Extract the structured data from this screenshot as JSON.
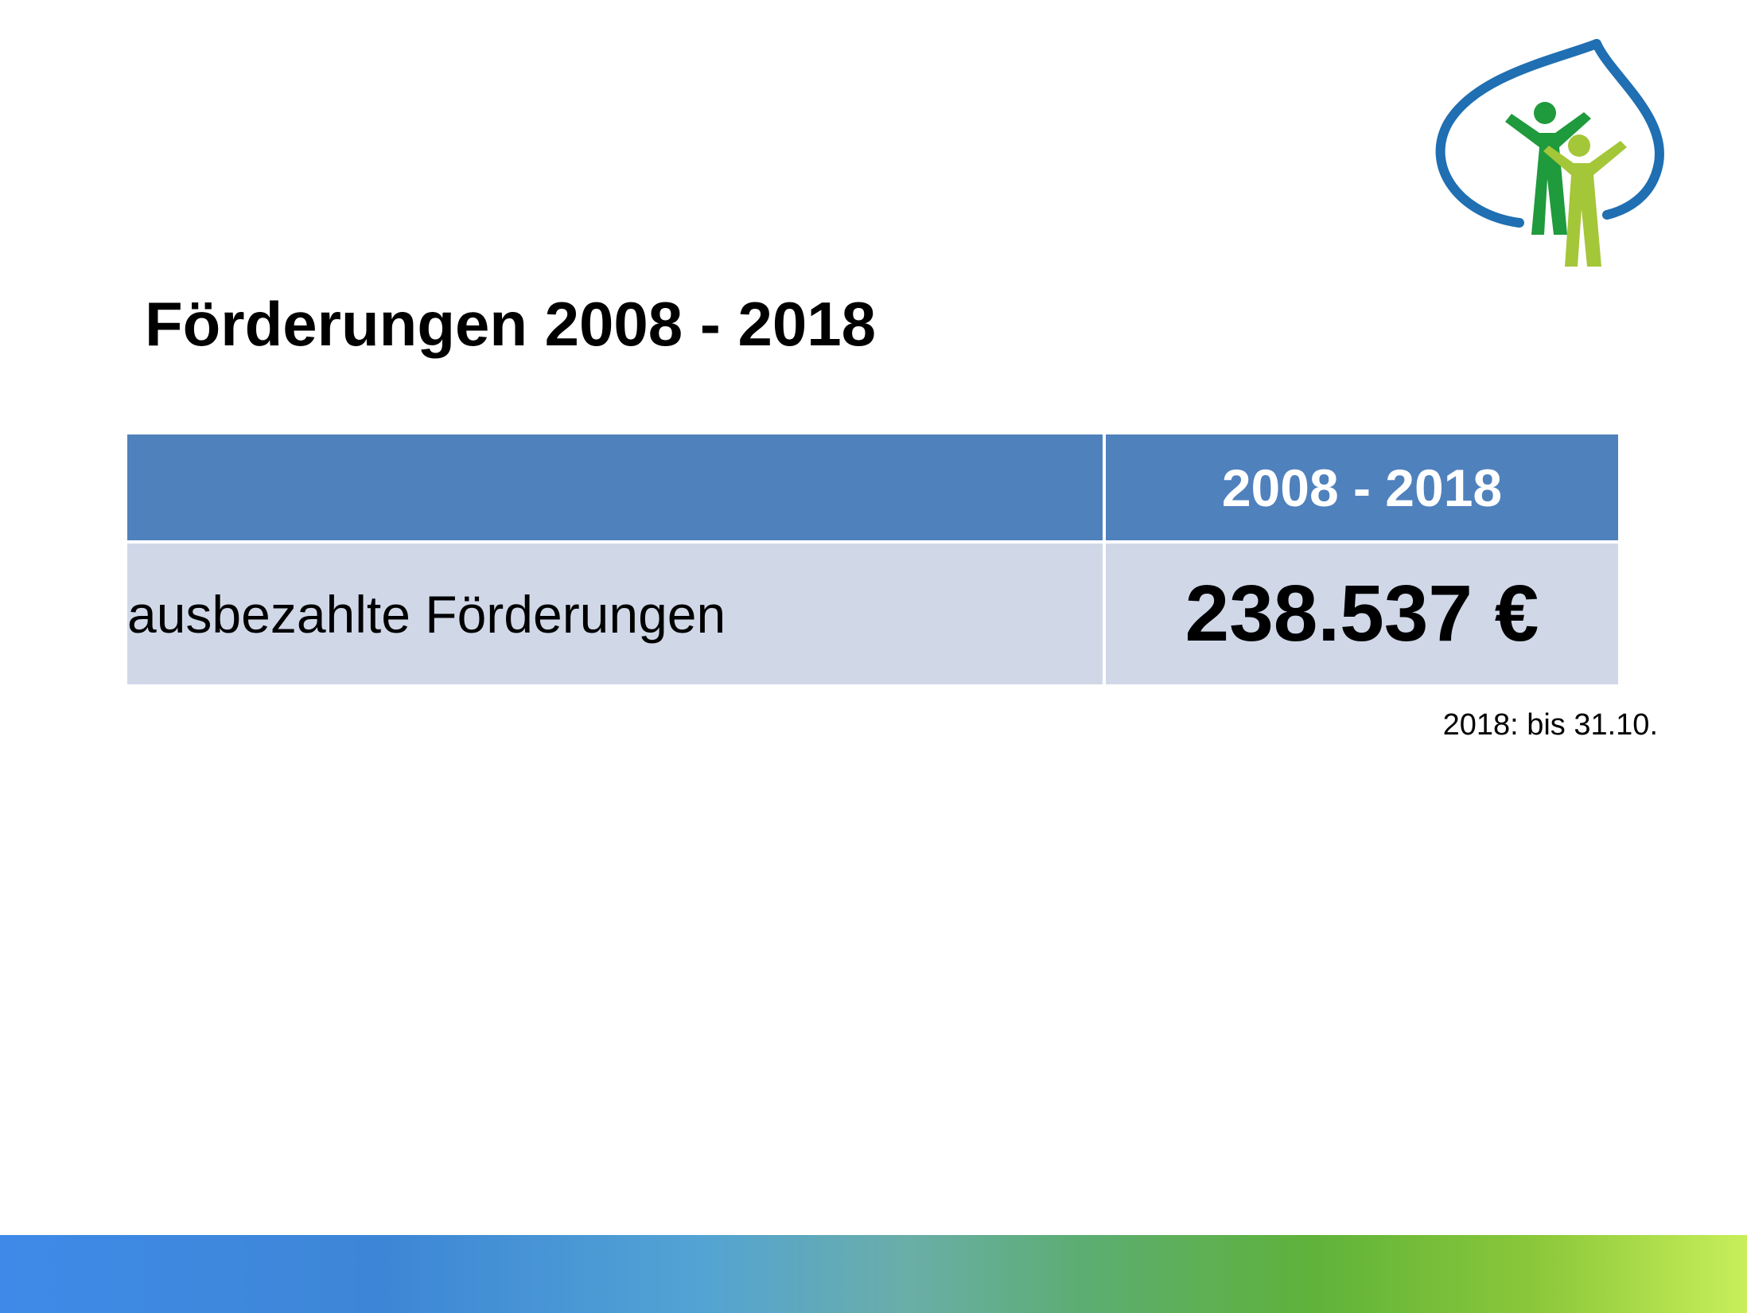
{
  "logo": {
    "icon": "leaf-with-two-figures-logo",
    "colors": {
      "leaf_outline": "#1f6fb2",
      "figure_dark": "#1f9a3c",
      "figure_light": "#a4c639"
    }
  },
  "title": "Förderungen 2008 - 2018",
  "table": {
    "header": {
      "label": "",
      "period": "2008 - 2018"
    },
    "rows": [
      {
        "label": "ausbezahlte Förderungen",
        "value": "238.537 €"
      }
    ]
  },
  "footnote": "2018: bis 31.10.",
  "colors": {
    "table_header": "#4f81bd",
    "table_row": "#d0d8e8",
    "gradient_start": "#3f8ae8",
    "gradient_end": "#c8ef5a"
  }
}
